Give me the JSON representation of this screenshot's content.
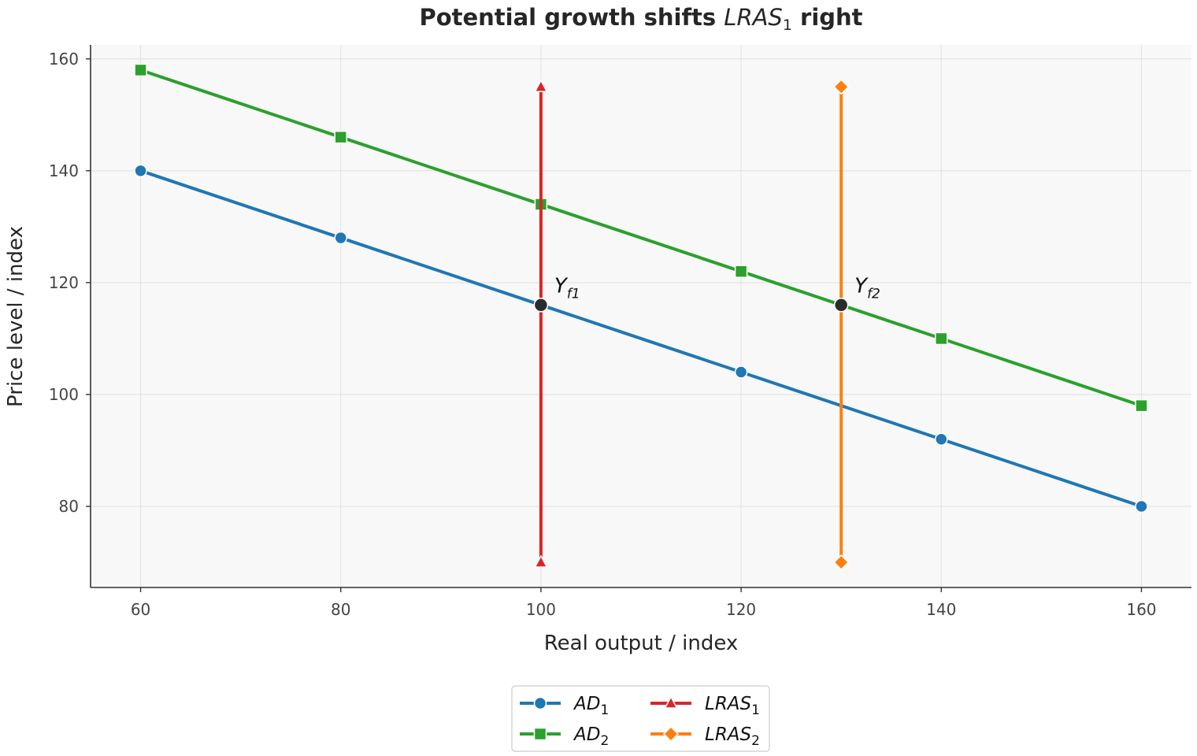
{
  "chart_data": {
    "type": "line",
    "title": "Potential growth shifts ",
    "title_math": "LRAS",
    "title_math_sub": "1",
    "title_suffix": " right",
    "xlabel": "Real output / index",
    "ylabel": "Price level / index",
    "xlim": [
      55,
      165
    ],
    "ylim": [
      65.5,
      162.5
    ],
    "xticks": [
      60,
      80,
      100,
      120,
      140,
      160
    ],
    "yticks": [
      80,
      100,
      120,
      140,
      160
    ],
    "grid": true,
    "legend_position": "bottom-center",
    "series": [
      {
        "name": "AD",
        "sub": "1",
        "color": "#1f77b4",
        "marker": "circle",
        "x": [
          60,
          80,
          100,
          120,
          140,
          160
        ],
        "y": [
          140,
          128,
          116,
          104,
          92,
          80
        ]
      },
      {
        "name": "AD",
        "sub": "2",
        "color": "#2ca02c",
        "marker": "square",
        "x": [
          60,
          80,
          100,
          120,
          140,
          160
        ],
        "y": [
          158,
          146,
          134,
          122,
          110,
          98
        ]
      },
      {
        "name": "LRAS",
        "sub": "1",
        "color": "#d62728",
        "marker": "triangle",
        "x": [
          100,
          100
        ],
        "y": [
          70,
          155
        ]
      },
      {
        "name": "LRAS",
        "sub": "2",
        "color": "#ff7f0e",
        "marker": "diamond",
        "x": [
          130,
          130
        ],
        "y": [
          70,
          155
        ]
      }
    ],
    "annotations": [
      {
        "label": "Y",
        "sub": "f1",
        "x": 100,
        "y": 116,
        "color": "#2b2b2b"
      },
      {
        "label": "Y",
        "sub": "f2",
        "x": 130,
        "y": 116,
        "color": "#2b2b2b"
      }
    ]
  }
}
